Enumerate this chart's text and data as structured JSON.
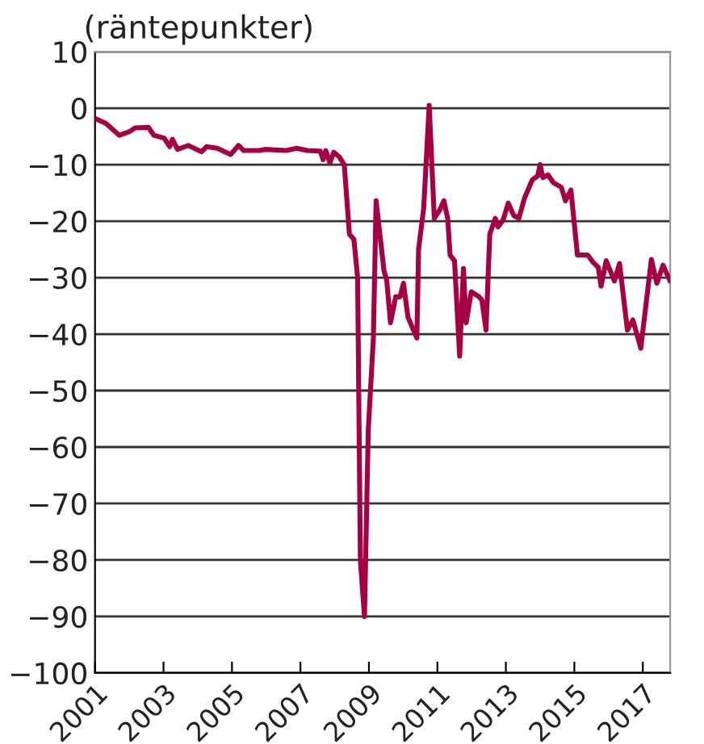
{
  "chart_data": {
    "type": "line",
    "title": "(räntepunkter)",
    "series": [
      {
        "color": "#a50044",
        "x": [
          2001.0,
          2001.32,
          2001.71,
          2002.02,
          2002.17,
          2002.56,
          2002.72,
          2003.02,
          2003.18,
          2003.26,
          2003.41,
          2003.72,
          2004.11,
          2004.26,
          2004.57,
          2004.96,
          2005.19,
          2005.34,
          2005.81,
          2005.96,
          2006.58,
          2006.89,
          2007.2,
          2007.58,
          2007.66,
          2007.74,
          2007.86,
          2007.97,
          2008.13,
          2008.28,
          2008.43,
          2008.56,
          2008.67,
          2008.75,
          2008.87,
          2008.98,
          2009.13,
          2009.21,
          2009.44,
          2009.52,
          2009.63,
          2009.78,
          2009.91,
          2010.01,
          2010.14,
          2010.4,
          2010.45,
          2010.6,
          2010.76,
          2010.91,
          2011.07,
          2011.19,
          2011.3,
          2011.37,
          2011.5,
          2011.65,
          2011.76,
          2011.84,
          2011.99,
          2012.22,
          2012.3,
          2012.42,
          2012.53,
          2012.69,
          2012.77,
          2012.92,
          2013.07,
          2013.23,
          2013.38,
          2013.54,
          2013.77,
          2013.93,
          2014.0,
          2014.08,
          2014.23,
          2014.39,
          2014.62,
          2014.74,
          2014.9,
          2015.09,
          2015.39,
          2015.55,
          2015.7,
          2015.78,
          2015.93,
          2016.17,
          2016.32,
          2016.55,
          2016.71,
          2016.94,
          2017.25,
          2017.41,
          2017.59,
          2017.79
        ],
        "values": [
          -1.8,
          -2.7,
          -4.8,
          -4.1,
          -3.5,
          -3.4,
          -4.8,
          -5.3,
          -6.8,
          -5.5,
          -7.3,
          -6.6,
          -7.7,
          -6.8,
          -7.1,
          -8.2,
          -6.6,
          -7.5,
          -7.5,
          -7.3,
          -7.5,
          -7.1,
          -7.5,
          -7.6,
          -9.1,
          -7.5,
          -9.7,
          -7.8,
          -8.6,
          -10,
          -22.3,
          -23.2,
          -30,
          -80,
          -90,
          -57,
          -40.7,
          -16.4,
          -28.8,
          -30.5,
          -38,
          -33.4,
          -33.4,
          -31,
          -37,
          -40.7,
          -25,
          -17.7,
          0.5,
          -19.5,
          -18,
          -16.4,
          -19.5,
          -26,
          -27,
          -43.9,
          -28.4,
          -38,
          -32.5,
          -33.4,
          -34,
          -39.3,
          -22.3,
          -19.5,
          -21,
          -19.8,
          -16.8,
          -19,
          -19.5,
          -16,
          -12.7,
          -12,
          -10,
          -12.3,
          -11.8,
          -13.2,
          -14,
          -16.4,
          -14.5,
          -26,
          -26,
          -27.3,
          -28.2,
          -31.5,
          -27,
          -30.6,
          -27.5,
          -39.3,
          -37.5,
          -42.5,
          -26.8,
          -31,
          -27.8,
          -30.5
        ]
      }
    ],
    "xlim": [
      2001,
      2017.8
    ],
    "xticks": [
      2001,
      2003,
      2005,
      2007,
      2009,
      2011,
      2013,
      2015,
      2017
    ],
    "ylim": [
      -100,
      10
    ],
    "yticks": [
      -100,
      -90,
      -80,
      -70,
      -60,
      -50,
      -40,
      -30,
      -20,
      -10,
      0,
      10
    ],
    "grid": "y",
    "line_style": "solid",
    "marker": "none"
  }
}
